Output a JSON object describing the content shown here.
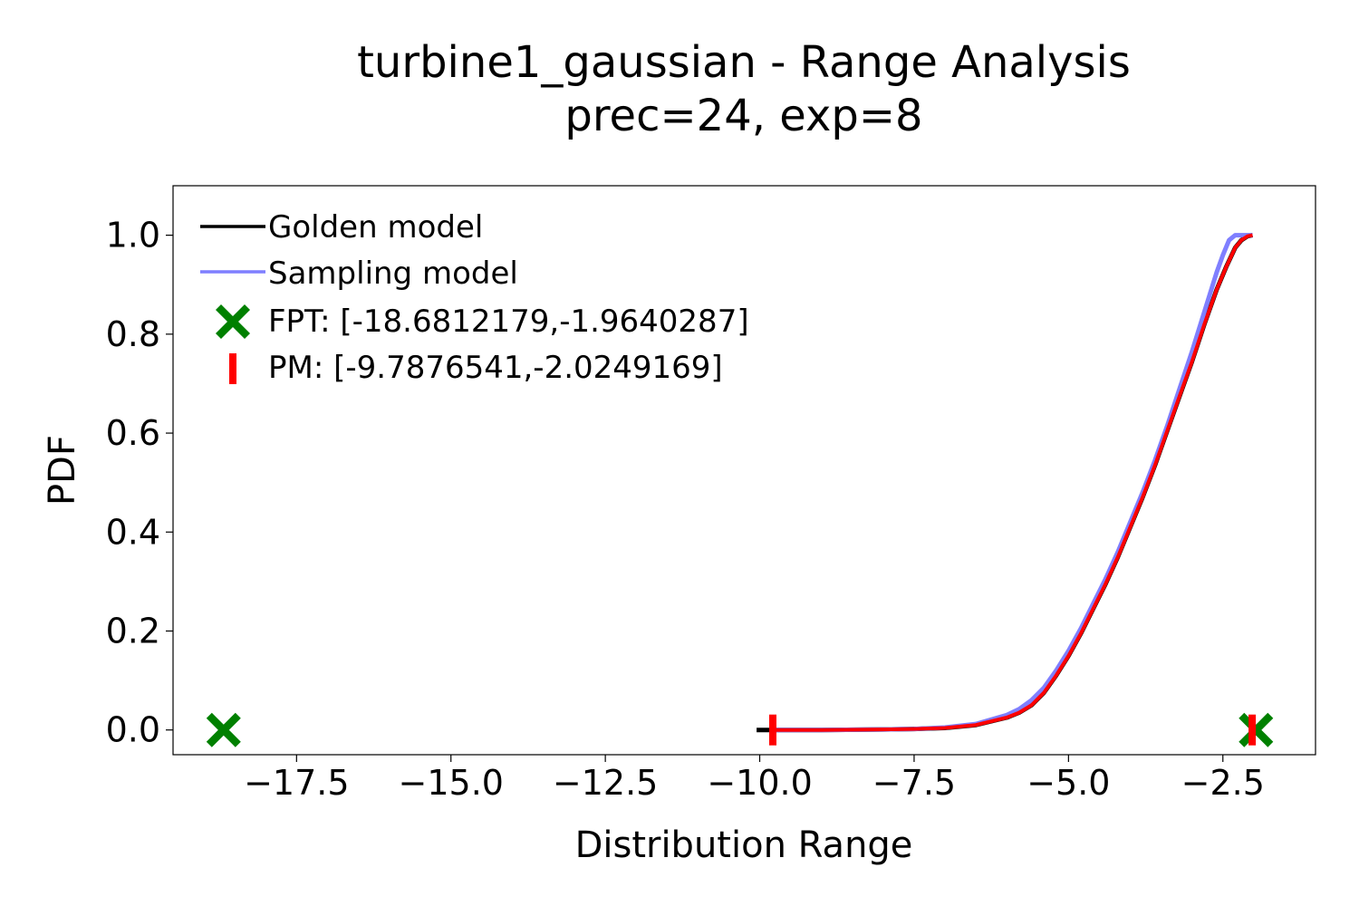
{
  "chart_data": {
    "type": "line",
    "title": "turbine1_gaussian - Range Analysis",
    "subtitle": "prec=24, exp=8",
    "xlabel": "Distribution Range",
    "ylabel": "PDF",
    "xlim": [
      -19.5,
      -1.0
    ],
    "ylim": [
      -0.05,
      1.1
    ],
    "xticks": [
      -17.5,
      -15.0,
      -12.5,
      -10.0,
      -7.5,
      -5.0,
      -2.5
    ],
    "xtick_labels": [
      "−17.5",
      "−15.0",
      "−12.5",
      "−10.0",
      "−7.5",
      "−5.0",
      "−2.5"
    ],
    "yticks": [
      0.0,
      0.2,
      0.4,
      0.6,
      0.8,
      1.0
    ],
    "ytick_labels": [
      "0.0",
      "0.2",
      "0.4",
      "0.6",
      "0.8",
      "1.0"
    ],
    "grid": false,
    "legend_placement": "upper-left",
    "series": [
      {
        "name": "Golden model",
        "color": "#000000",
        "x": [
          -10.05,
          -9.79,
          -9.0,
          -8.0,
          -7.5,
          -7.0,
          -6.5,
          -6.0,
          -5.8,
          -5.6,
          -5.4,
          -5.2,
          -5.0,
          -4.8,
          -4.6,
          -4.4,
          -4.2,
          -4.0,
          -3.8,
          -3.6,
          -3.4,
          -3.2,
          -3.0,
          -2.8,
          -2.6,
          -2.45,
          -2.3,
          -2.2,
          -2.1,
          -2.02
        ],
        "y": [
          0.0,
          0.0,
          0.0,
          0.001,
          0.002,
          0.004,
          0.01,
          0.025,
          0.035,
          0.05,
          0.075,
          0.11,
          0.15,
          0.195,
          0.245,
          0.295,
          0.35,
          0.41,
          0.47,
          0.535,
          0.605,
          0.675,
          0.745,
          0.82,
          0.89,
          0.935,
          0.975,
          0.99,
          0.998,
          1.0
        ]
      },
      {
        "name": "Sampling model",
        "color": "#7f7fff",
        "x": [
          -9.79,
          -9.0,
          -8.0,
          -7.5,
          -7.0,
          -6.5,
          -6.0,
          -5.8,
          -5.6,
          -5.4,
          -5.2,
          -5.0,
          -4.8,
          -4.6,
          -4.4,
          -4.2,
          -4.0,
          -3.8,
          -3.6,
          -3.4,
          -3.2,
          -3.0,
          -2.8,
          -2.6,
          -2.5,
          -2.4,
          -2.3,
          -2.2,
          -2.1,
          -2.02
        ],
        "y": [
          0.0,
          0.0,
          0.001,
          0.002,
          0.005,
          0.012,
          0.03,
          0.042,
          0.06,
          0.085,
          0.12,
          0.16,
          0.205,
          0.255,
          0.305,
          0.36,
          0.42,
          0.48,
          0.545,
          0.615,
          0.69,
          0.765,
          0.845,
          0.925,
          0.96,
          0.99,
          1.0,
          1.0,
          1.0,
          1.0
        ]
      },
      {
        "name": "",
        "color": "#ff0000",
        "x": [
          -9.79,
          -9.0,
          -8.0,
          -7.5,
          -7.0,
          -6.5,
          -6.0,
          -5.8,
          -5.6,
          -5.4,
          -5.2,
          -5.0,
          -4.8,
          -4.6,
          -4.4,
          -4.2,
          -4.0,
          -3.8,
          -3.6,
          -3.4,
          -3.2,
          -3.0,
          -2.8,
          -2.6,
          -2.45,
          -2.3,
          -2.2,
          -2.1,
          -2.02
        ],
        "y": [
          0.0,
          0.0,
          0.001,
          0.002,
          0.004,
          0.01,
          0.025,
          0.035,
          0.05,
          0.075,
          0.11,
          0.15,
          0.195,
          0.245,
          0.295,
          0.35,
          0.41,
          0.47,
          0.535,
          0.605,
          0.675,
          0.745,
          0.82,
          0.89,
          0.935,
          0.975,
          0.99,
          0.998,
          1.0
        ]
      }
    ],
    "markers": [
      {
        "name": "FPT: [-18.6812179,-1.9640287]",
        "shape": "x-filled",
        "color": "#008000",
        "points": [
          [
            -18.6812179,
            0.0
          ],
          [
            -1.9640287,
            0.0
          ]
        ]
      },
      {
        "name": "PM: [-9.7876541,-2.0249169]",
        "shape": "vline",
        "color": "#ff0000",
        "points": [
          [
            -9.7876541,
            0.0
          ],
          [
            -2.0249169,
            0.0
          ]
        ]
      }
    ]
  }
}
